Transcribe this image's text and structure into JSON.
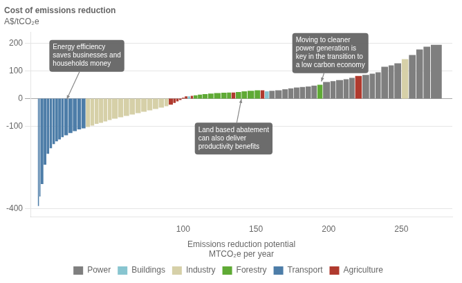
{
  "chart_data": {
    "type": "bar",
    "title": "Cost of emissions reduction",
    "subtitle": "A$/tCO₂e",
    "xlabel": "Emissions reduction potential\nMTCO₂e per year",
    "xlim": [
      -5,
      285
    ],
    "xticks": [
      100,
      150,
      200,
      250
    ],
    "ylim": [
      -430,
      240
    ],
    "yticks": [
      -400,
      -100,
      0,
      100,
      200
    ],
    "grid": true,
    "legend": "bottom",
    "series": [
      {
        "name": "Power",
        "color": "#7f7f7f",
        "x": [
          159,
          163,
          168,
          172,
          176,
          180,
          184,
          188,
          196,
          201,
          205,
          210,
          214,
          223,
          228,
          232,
          236,
          241,
          245,
          255,
          260,
          265,
          270
        ],
        "widths": [
          4,
          5,
          4,
          4,
          4,
          4,
          4,
          4,
          5,
          4,
          5,
          4,
          4,
          5,
          4,
          4,
          5,
          4,
          5,
          5,
          5,
          5,
          8
        ],
        "values": [
          28,
          30,
          34,
          37,
          40,
          42,
          44,
          47,
          60,
          63,
          67,
          70,
          75,
          86,
          90,
          95,
          115,
          120,
          128,
          158,
          178,
          188,
          195
        ]
      },
      {
        "name": "Buildings",
        "color": "#88c5d0",
        "x": [
          103,
          156
        ],
        "widths": [
          2,
          3
        ],
        "values": [
          8,
          26
        ]
      },
      {
        "name": "Industry",
        "color": "#d6d0a8",
        "x": [
          33,
          36,
          39,
          42,
          45,
          48,
          51,
          55,
          59,
          63,
          67,
          71,
          75,
          79,
          83,
          87,
          250
        ],
        "widths": [
          3,
          3,
          3,
          3,
          3,
          3,
          4,
          4,
          4,
          4,
          4,
          4,
          4,
          4,
          4,
          3,
          5
        ],
        "values": [
          -103,
          -98,
          -92,
          -88,
          -83,
          -78,
          -73,
          -68,
          -63,
          -58,
          -53,
          -48,
          -43,
          -38,
          -33,
          -28,
          143
        ]
      },
      {
        "name": "Forestry",
        "color": "#5faa35",
        "x": [
          107,
          110,
          113,
          117,
          121,
          126,
          130,
          136,
          140,
          144,
          149,
          192
        ],
        "widths": [
          3,
          3,
          4,
          4,
          5,
          4,
          3,
          4,
          4,
          5,
          4,
          4
        ],
        "values": [
          12,
          14,
          16,
          18,
          20,
          21,
          22,
          24,
          26,
          28,
          30,
          50
        ]
      },
      {
        "name": "Transport",
        "color": "#4d7da8",
        "x": [
          0,
          1,
          2,
          4,
          6,
          8,
          10,
          12,
          14,
          16,
          18,
          21,
          24,
          27,
          30
        ],
        "widths": [
          1,
          1,
          2,
          2,
          2,
          2,
          2,
          2,
          2,
          2,
          3,
          3,
          3,
          3,
          3
        ],
        "values": [
          -390,
          -355,
          -310,
          -240,
          -200,
          -180,
          -165,
          -155,
          -148,
          -140,
          -133,
          -125,
          -118,
          -112,
          -108
        ]
      },
      {
        "name": "Agriculture",
        "color": "#b03a2e",
        "x": [
          90,
          93,
          95,
          97,
          99,
          101,
          105,
          133,
          153,
          218
        ],
        "widths": [
          3,
          2,
          2,
          2,
          2,
          2,
          2,
          3,
          3,
          5
        ],
        "values": [
          -22,
          -16,
          -10,
          -5,
          3,
          8,
          10,
          22,
          30,
          82
        ]
      }
    ],
    "annotations": [
      {
        "text": "Energy efficiency\nsaves businesses and\nhouseholds money",
        "x": 20,
        "y": -2,
        "text_x": 8,
        "text_y": 155
      },
      {
        "text": "Land based abatement\ncan also deliver\nproductivity benefits",
        "x": 140,
        "y": -2,
        "text_x": 108,
        "text_y": -145
      },
      {
        "text": "Moving to cleaner\npower generation is\nkey in the transition to\na low carbon economy",
        "x": 195,
        "y": 62,
        "text_x": 175,
        "text_y": 165
      }
    ]
  }
}
